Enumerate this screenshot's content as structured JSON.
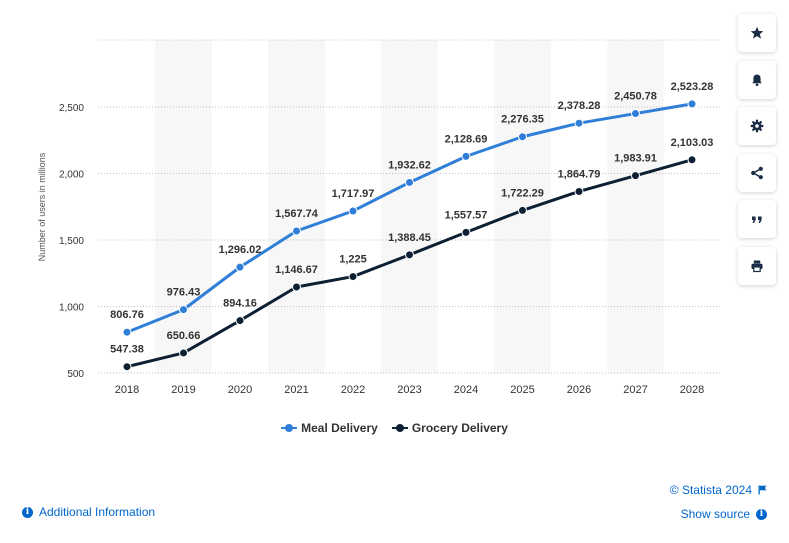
{
  "chart_data": {
    "type": "line",
    "title": "",
    "xlabel": "",
    "ylabel": "Number of users in millions",
    "categories": [
      "2018",
      "2019",
      "2020",
      "2021",
      "2022",
      "2023",
      "2024",
      "2025",
      "2026",
      "2027",
      "2028"
    ],
    "ylim": [
      500,
      2500
    ],
    "yticks": [
      500,
      1000,
      1500,
      2000,
      2500
    ],
    "ytick_labels": [
      "500",
      "1,000",
      "1,500",
      "2,000",
      "2,500"
    ],
    "grid": true,
    "legend_position": "bottom",
    "series": [
      {
        "name": "Meal Delivery",
        "color": "#2f7ed8",
        "values": [
          806.76,
          976.43,
          1296.02,
          1567.74,
          1717.97,
          1932.62,
          2128.69,
          2276.35,
          2378.28,
          2450.78,
          2523.28
        ],
        "labels": [
          "806.76",
          "976.43",
          "1,296.02",
          "1,567.74",
          "1,717.97",
          "1,932.62",
          "2,128.69",
          "2,276.35",
          "2,378.28",
          "2,450.78",
          "2,523.28"
        ]
      },
      {
        "name": "Grocery Delivery",
        "color": "#0d1f33",
        "values": [
          547.38,
          650.66,
          894.16,
          1146.67,
          1225,
          1388.45,
          1557.57,
          1722.29,
          1864.79,
          1983.91,
          2103.03
        ],
        "labels": [
          "547.38",
          "650.66",
          "894.16",
          "1,146.67",
          "1,225",
          "1,388.45",
          "1,557.57",
          "1,722.29",
          "1,864.79",
          "1,983.91",
          "2,103.03"
        ]
      }
    ]
  },
  "legend": {
    "meal": "Meal Delivery",
    "grocery": "Grocery Delivery"
  },
  "toolbar": {
    "icons": [
      "star-icon",
      "bell-icon",
      "gear-icon",
      "share-icon",
      "quote-icon",
      "print-icon"
    ]
  },
  "footer": {
    "additional_info": "Additional Information",
    "copyright": "© Statista 2024",
    "show_source": "Show source",
    "info_glyph": "i",
    "link_color": "#0066cc"
  }
}
